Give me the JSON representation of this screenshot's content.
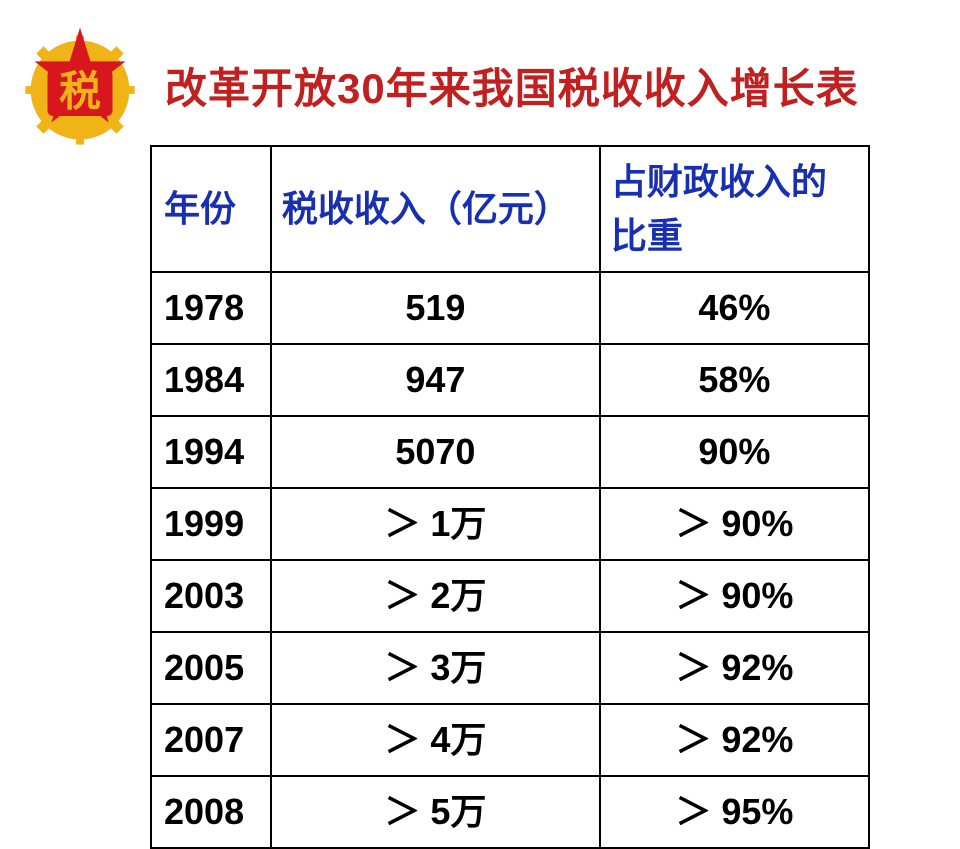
{
  "title": "改革开放30年来我国税收收入增长表",
  "logo": {
    "accent_color": "#d8161e",
    "gold_color": "#f0b418",
    "char": "税"
  },
  "table": {
    "header_color": "#1830b0",
    "body_color": "#000000",
    "border_color": "#000000",
    "columns": {
      "year": "年份",
      "revenue": "税收收入（亿元）",
      "percent": "占财政收入的比重"
    },
    "rows": [
      {
        "year": "1978",
        "revenue": "519",
        "percent": "46%"
      },
      {
        "year": "1984",
        "revenue": "947",
        "percent": "58%"
      },
      {
        "year": "1994",
        "revenue": "5070",
        "percent": "90%"
      },
      {
        "year": "1999",
        "revenue": "＞ 1万",
        "percent": "＞ 90%"
      },
      {
        "year": "2003",
        "revenue": "＞ 2万",
        "percent": "＞ 90%"
      },
      {
        "year": "2005",
        "revenue": "＞ 3万",
        "percent": "＞ 92%"
      },
      {
        "year": "2007",
        "revenue": "＞ 4万",
        "percent": "＞ 92%"
      },
      {
        "year": "2008",
        "revenue": "＞ 5万",
        "percent": "＞ 95%"
      }
    ]
  }
}
